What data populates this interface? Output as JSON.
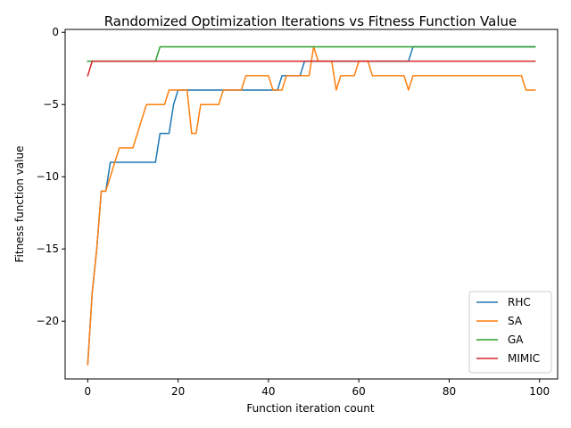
{
  "chart_data": {
    "type": "line",
    "title": "Randomized Optimization Iterations vs Fitness Function Value",
    "xlabel": "Function iteration count",
    "ylabel": "Fitness function value",
    "xlim": [
      -5,
      104
    ],
    "ylim": [
      -24,
      0.2
    ],
    "xticks": [
      0,
      20,
      40,
      60,
      80,
      100
    ],
    "yticks": [
      0,
      -5,
      -10,
      -15,
      -20
    ],
    "ytick_labels": [
      "0",
      "−5",
      "−10",
      "−15",
      "−20"
    ],
    "grid": false,
    "legend_position": "lower right",
    "series": [
      {
        "name": "RHC",
        "color": "#1f77b4",
        "points": [
          [
            0,
            -23
          ],
          [
            1,
            -18
          ],
          [
            2,
            -15
          ],
          [
            3,
            -11
          ],
          [
            4,
            -11
          ],
          [
            5,
            -9
          ],
          [
            15,
            -9
          ],
          [
            16,
            -7
          ],
          [
            18,
            -7
          ],
          [
            19,
            -5
          ],
          [
            20,
            -4
          ],
          [
            42,
            -4
          ],
          [
            43,
            -3
          ],
          [
            47,
            -3
          ],
          [
            48,
            -2
          ],
          [
            71,
            -2
          ],
          [
            72,
            -1
          ],
          [
            99,
            -1
          ]
        ]
      },
      {
        "name": "SA",
        "color": "#ff7f0e",
        "points": [
          [
            0,
            -23
          ],
          [
            1,
            -18
          ],
          [
            2,
            -15
          ],
          [
            3,
            -11
          ],
          [
            4,
            -11
          ],
          [
            5,
            -10
          ],
          [
            6,
            -9
          ],
          [
            7,
            -8
          ],
          [
            10,
            -8
          ],
          [
            11,
            -7
          ],
          [
            12,
            -6
          ],
          [
            13,
            -5
          ],
          [
            17,
            -5
          ],
          [
            18,
            -4
          ],
          [
            22,
            -4
          ],
          [
            23,
            -7
          ],
          [
            24,
            -7
          ],
          [
            25,
            -5
          ],
          [
            29,
            -5
          ],
          [
            30,
            -4
          ],
          [
            34,
            -4
          ],
          [
            35,
            -3
          ],
          [
            40,
            -3
          ],
          [
            41,
            -4
          ],
          [
            43,
            -4
          ],
          [
            44,
            -3
          ],
          [
            49,
            -3
          ],
          [
            50,
            -1
          ],
          [
            51,
            -2
          ],
          [
            54,
            -2
          ],
          [
            55,
            -4
          ],
          [
            56,
            -3
          ],
          [
            59,
            -3
          ],
          [
            60,
            -2
          ],
          [
            62,
            -2
          ],
          [
            63,
            -3
          ],
          [
            70,
            -3
          ],
          [
            71,
            -4
          ],
          [
            72,
            -3
          ],
          [
            96,
            -3
          ],
          [
            97,
            -4
          ],
          [
            99,
            -4
          ]
        ]
      },
      {
        "name": "GA",
        "color": "#2ca02c",
        "points": [
          [
            0,
            -2
          ],
          [
            15,
            -2
          ],
          [
            16,
            -1
          ],
          [
            99,
            -1
          ]
        ]
      },
      {
        "name": "MIMIC",
        "color": "#d62728",
        "points": [
          [
            0,
            -3
          ],
          [
            1,
            -2
          ],
          [
            99,
            -2
          ]
        ]
      }
    ]
  }
}
